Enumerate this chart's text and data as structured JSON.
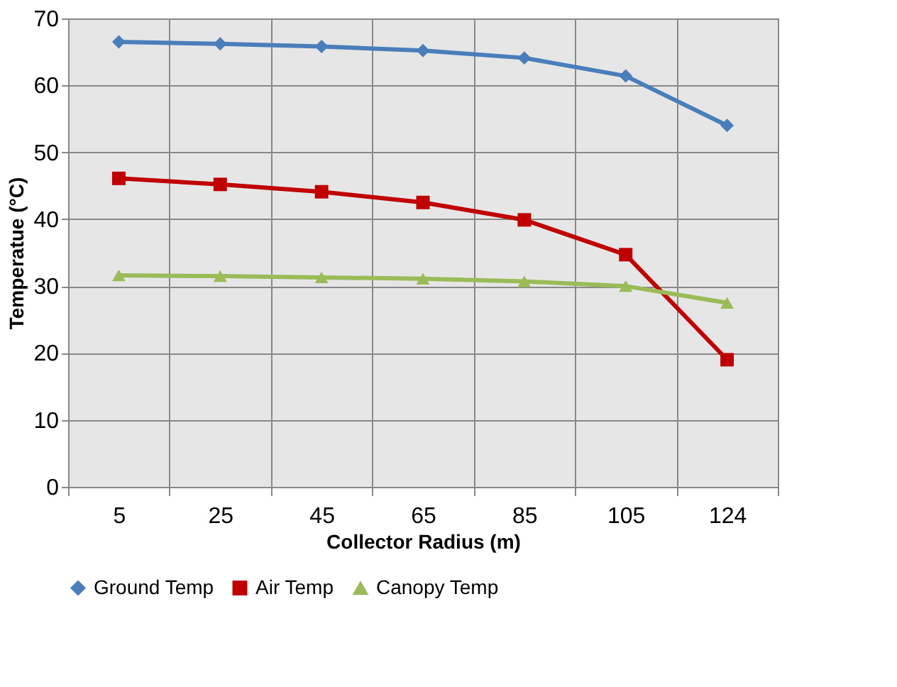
{
  "chart_data": {
    "type": "line",
    "xlabel": "Collector Radius (m)",
    "ylabel": "Temperatue (°C)",
    "categories": [
      "5",
      "25",
      "45",
      "65",
      "85",
      "105",
      "124"
    ],
    "series": [
      {
        "name": "Ground Temp",
        "color": "#4a7ebb",
        "marker": "diamond",
        "values": [
          66.5,
          66.2,
          65.8,
          65.2,
          64.1,
          61.4,
          54.0
        ]
      },
      {
        "name": "Air Temp",
        "color": "#c00000",
        "marker": "square",
        "values": [
          46.1,
          45.2,
          44.1,
          42.5,
          39.9,
          34.7,
          19.0
        ]
      },
      {
        "name": "Canopy Temp",
        "color": "#9bbb59",
        "marker": "triangle",
        "values": [
          31.6,
          31.5,
          31.3,
          31.1,
          30.7,
          30.0,
          27.5
        ]
      }
    ],
    "ylim": [
      0,
      70
    ],
    "yticks": [
      0,
      10,
      20,
      30,
      40,
      50,
      60,
      70
    ],
    "grid": true,
    "legend": "bottom",
    "line_style": "solid"
  }
}
